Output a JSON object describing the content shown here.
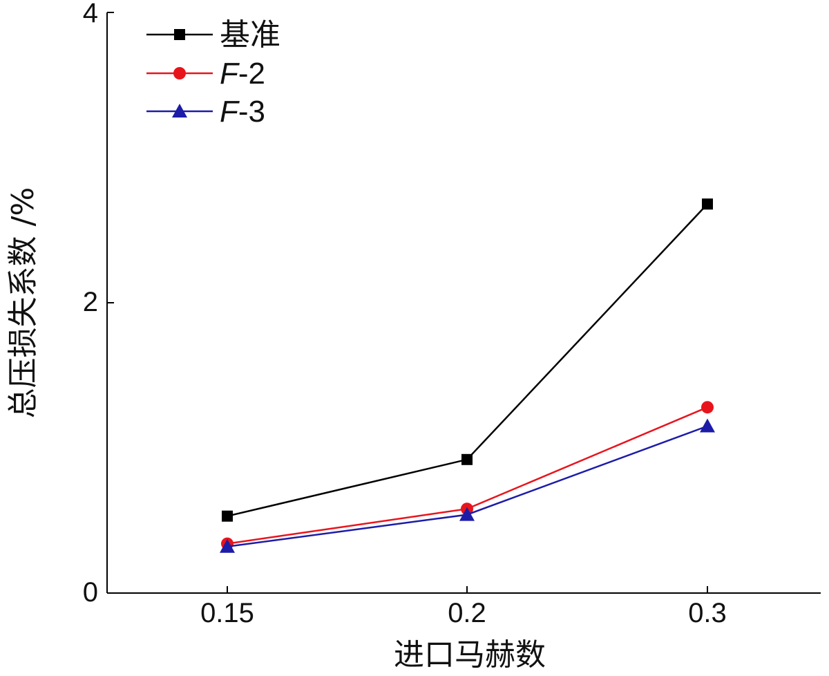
{
  "chart_data": {
    "type": "line",
    "x": [
      0.15,
      0.2,
      0.3
    ],
    "x_tick_labels": [
      "0.15",
      "0.2",
      "0.3"
    ],
    "xlabel": "进口马赫数",
    "ylabel": "总压损失系数 /%",
    "ylim": [
      0,
      4
    ],
    "y_ticks": [
      0,
      2,
      4
    ],
    "y_tick_labels": [
      "0",
      "2",
      "4"
    ],
    "grid": false,
    "legend_position": "top-left",
    "series": [
      {
        "name": "基准",
        "name_italic_prefix": "",
        "name_rest": "基准",
        "color": "#000000",
        "marker": "square",
        "values": [
          0.53,
          0.92,
          2.68
        ]
      },
      {
        "name": "F-2",
        "name_italic_prefix": "F",
        "name_rest": "-2",
        "color": "#e8141c",
        "marker": "circle",
        "values": [
          0.34,
          0.58,
          1.28
        ]
      },
      {
        "name": "F-3",
        "name_italic_prefix": "F",
        "name_rest": "-3",
        "color": "#1c1ca8",
        "marker": "triangle",
        "values": [
          0.32,
          0.54,
          1.15
        ]
      }
    ]
  }
}
